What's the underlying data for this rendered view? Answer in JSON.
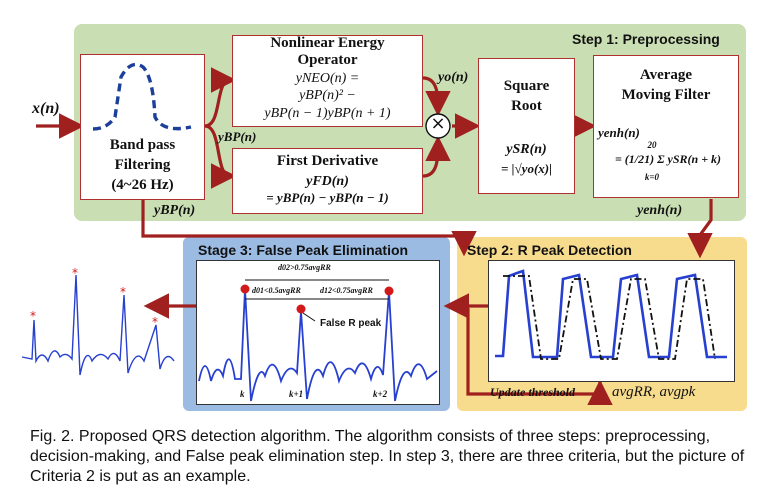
{
  "input_label": "x(n)",
  "step1": {
    "title": "Step 1: Preprocessing",
    "bandpass": {
      "line1": "Band pass",
      "line2": "Filtering",
      "line3": "(4~26 Hz)"
    },
    "neo": {
      "title_line1": "Nonlinear Energy",
      "title_line2": "Operator",
      "eq_line1": "yNEO(n) =",
      "eq_line2": "yBP(n)² −",
      "eq_line3": "yBP(n − 1)yBP(n + 1)"
    },
    "fd": {
      "title": "First Derivative",
      "eq_line1": "yFD(n)",
      "eq_line2": "= yBP(n) − yBP(n − 1)"
    },
    "sqrt": {
      "title_line1": "Square",
      "title_line2": "Root",
      "eq_line1": "ySR(n)",
      "eq_line2": "= |√yo(x)|"
    },
    "avg": {
      "title_line1": "Average",
      "title_line2": "Moving Filter",
      "eq_line1": "yenh(n)",
      "eq_line2": "= (1/21) Σ ySR(n + k)",
      "sum_top": "20",
      "sum_bottom": "k=0"
    },
    "yo_label": "yo(n)",
    "ybp_label_mid": "yBP(n)",
    "ybp_label_bottom": "yBP(n)",
    "yenh_label": "yenh(n)",
    "multiply_symbol": "×"
  },
  "step2": {
    "title": "Step 2: R Peak Detection",
    "update_label": "Update threshold",
    "avg_label": "avgRR, avgpk"
  },
  "stage3": {
    "title": "Stage 3: False Peak Elimination",
    "d02": "d02>0.75avgRR",
    "d01": "d01<0.5avgRR",
    "d12": "d12<0.75avgRR",
    "false_peak": "False R peak",
    "k0": "k",
    "k1": "k+1",
    "k2": "k+2"
  },
  "caption": "Fig. 2. Proposed QRS detection algorithm. The algorithm consists of three steps: preprocessing, decision-making, and False peak elimination step. In step 3, there are three  criteria, but the picture of Criteria 2 is put as an example.",
  "colors": {
    "step1_bg": "#c9dfb3",
    "step2_bg": "#f8dc8e",
    "stage3_bg": "#9bbbe3",
    "arrow": "#a0201f",
    "signal": "#2740d0"
  }
}
